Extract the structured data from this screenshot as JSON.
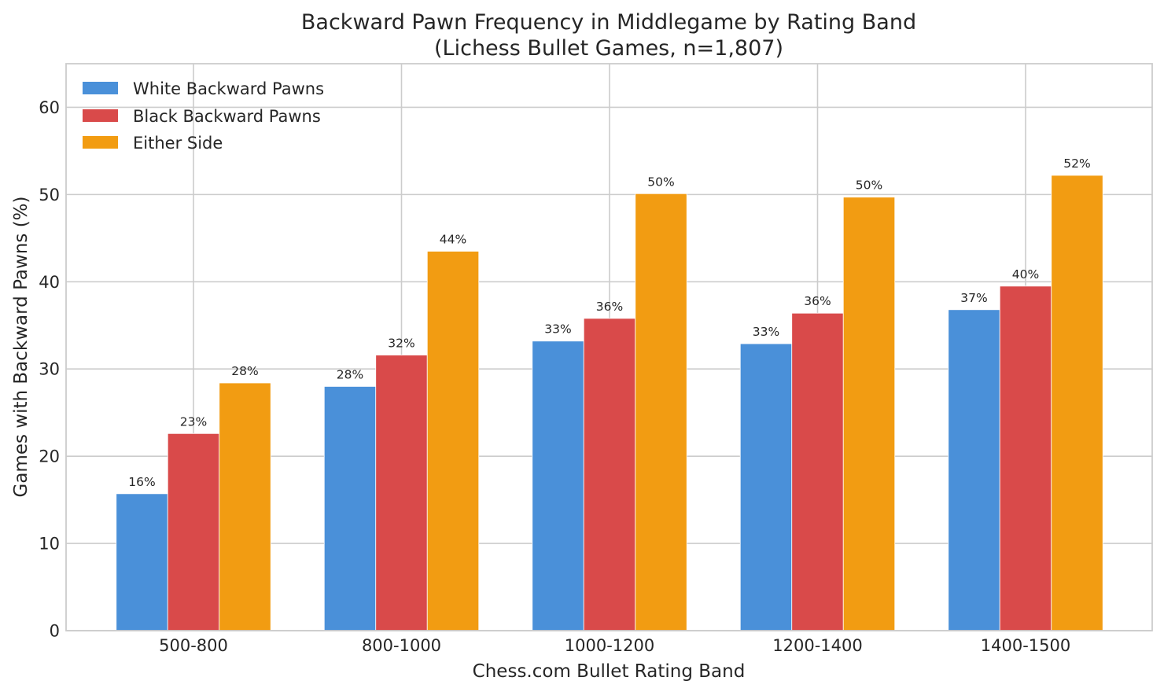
{
  "chart_data": {
    "type": "bar",
    "title": "Backward Pawn Frequency in Middlegame by Rating Band",
    "subtitle": "(Lichess Bullet Games, n=1,807)",
    "xlabel": "Chess.com Bullet Rating Band",
    "ylabel": "Games with Backward Pawns (%)",
    "ylim": [
      0,
      65
    ],
    "yticks": [
      0,
      10,
      20,
      30,
      40,
      50,
      60
    ],
    "grid": true,
    "legend_position": "top-left",
    "categories": [
      "500-800",
      "800-1000",
      "1000-1200",
      "1200-1400",
      "1400-1500"
    ],
    "series": [
      {
        "name": "White Backward Pawns",
        "color": "#4a90d9",
        "values": [
          15.7,
          28.0,
          33.2,
          32.9,
          36.8
        ],
        "labels": [
          "16%",
          "28%",
          "33%",
          "33%",
          "37%"
        ]
      },
      {
        "name": "Black Backward Pawns",
        "color": "#d94a4a",
        "values": [
          22.6,
          31.6,
          35.8,
          36.4,
          39.5
        ],
        "labels": [
          "23%",
          "32%",
          "36%",
          "36%",
          "40%"
        ]
      },
      {
        "name": "Either Side",
        "color": "#f29c12",
        "values": [
          28.4,
          43.5,
          50.1,
          49.7,
          52.2
        ],
        "labels": [
          "28%",
          "44%",
          "50%",
          "50%",
          "52%"
        ]
      }
    ]
  }
}
